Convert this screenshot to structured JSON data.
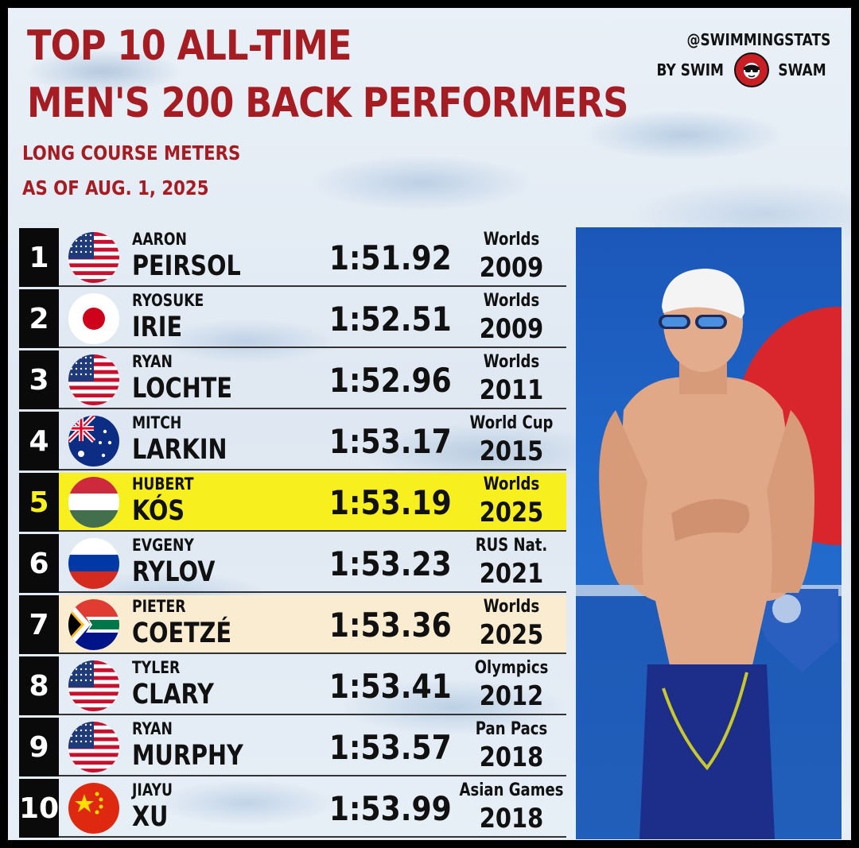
{
  "header": {
    "title_line1": "TOP 10 ALL-TIME",
    "title_line2": "MEN'S 200 BACK PERFORMERS",
    "subtitle_line1": "LONG COURSE METERS",
    "subtitle_line2": "AS OF AUG. 1, 2025"
  },
  "brand": {
    "handle": "@SWIMMINGSTATS",
    "by": "BY SWIM",
    "swam": "SWAM",
    "logo_icon": "swimswam-logo-icon"
  },
  "colors": {
    "title_red": "#a51d22",
    "highlight_yellow": "#f8ef1e",
    "highlight_cream": "#faecd0",
    "rank_bg": "#0a0a0a"
  },
  "rows": [
    {
      "rank": "1",
      "flag": "usa",
      "first": "AARON",
      "last": "PEIRSOL",
      "time": "1:51.92",
      "meet": "Worlds",
      "year": "2009",
      "highlight": "none"
    },
    {
      "rank": "2",
      "flag": "japan",
      "first": "RYOSUKE",
      "last": "IRIE",
      "time": "1:52.51",
      "meet": "Worlds",
      "year": "2009",
      "highlight": "none"
    },
    {
      "rank": "3",
      "flag": "usa",
      "first": "RYAN",
      "last": "LOCHTE",
      "time": "1:52.96",
      "meet": "Worlds",
      "year": "2011",
      "highlight": "none"
    },
    {
      "rank": "4",
      "flag": "australia",
      "first": "MITCH",
      "last": "LARKIN",
      "time": "1:53.17",
      "meet": "World Cup",
      "year": "2015",
      "highlight": "none"
    },
    {
      "rank": "5",
      "flag": "hungary",
      "first": "HUBERT",
      "last": "KÓS",
      "time": "1:53.19",
      "meet": "Worlds",
      "year": "2025",
      "highlight": "yellow"
    },
    {
      "rank": "6",
      "flag": "russia",
      "first": "EVGENY",
      "last": "RYLOV",
      "time": "1:53.23",
      "meet": "RUS Nat.",
      "year": "2021",
      "highlight": "none"
    },
    {
      "rank": "7",
      "flag": "south-africa",
      "first": "PIETER",
      "last": "COETZÉ",
      "time": "1:53.36",
      "meet": "Worlds",
      "year": "2025",
      "highlight": "cream"
    },
    {
      "rank": "8",
      "flag": "usa",
      "first": "TYLER",
      "last": "CLARY",
      "time": "1:53.41",
      "meet": "Olympics",
      "year": "2012",
      "highlight": "none"
    },
    {
      "rank": "9",
      "flag": "usa",
      "first": "RYAN",
      "last": "MURPHY",
      "time": "1:53.57",
      "meet": "Pan Pacs",
      "year": "2018",
      "highlight": "none"
    },
    {
      "rank": "10",
      "flag": "china",
      "first": "JIAYU",
      "last": "XU",
      "time": "1:53.99",
      "meet": "Asian Games",
      "year": "2018",
      "highlight": "none"
    }
  ]
}
